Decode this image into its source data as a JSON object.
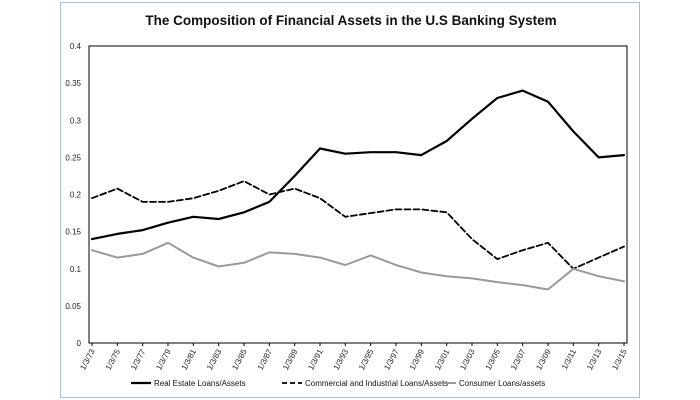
{
  "chart_data": {
    "type": "line",
    "title": "The Composition of Financial Assets in the U.S Banking System",
    "xlabel": "",
    "ylabel": "",
    "ylim": [
      0,
      0.4
    ],
    "yticks": [
      "0",
      "0.05",
      "0.1",
      "0.15",
      "0.2",
      "0.25",
      "0.3",
      "0.35",
      "0.4"
    ],
    "x_tick_labels": [
      "1/3/73",
      "1/3/75",
      "1/3/77",
      "1/3/79",
      "1/3/81",
      "1/3/83",
      "1/3/85",
      "1/3/87",
      "1/3/89",
      "1/3/91",
      "1/3/93",
      "1/3/95",
      "1/3/97",
      "1/3/99",
      "1/3/01",
      "1/3/03",
      "1/3/05",
      "1/3/07",
      "1/3/09",
      "1/3/11",
      "1/3/13",
      "1/3/15"
    ],
    "x": [
      "1/3/73",
      "1/3/75",
      "1/3/77",
      "1/3/79",
      "1/3/81",
      "1/3/83",
      "1/3/85",
      "1/3/87",
      "1/3/89",
      "1/3/91",
      "1/3/93",
      "1/3/95",
      "1/3/97",
      "1/3/99",
      "1/3/01",
      "1/3/03",
      "1/3/05",
      "1/3/07",
      "1/3/09",
      "1/3/11",
      "1/3/13",
      "1/3/15"
    ],
    "grid": false,
    "legend": "bottom",
    "series": [
      {
        "name": "Real Estate Loans/Assets",
        "color": "#000000",
        "dash": "solid",
        "width": 2.2,
        "values": [
          0.14,
          0.147,
          0.152,
          0.162,
          0.17,
          0.167,
          0.176,
          0.19,
          0.225,
          0.262,
          0.255,
          0.257,
          0.257,
          0.253,
          0.272,
          0.302,
          0.33,
          0.34,
          0.325,
          0.285,
          0.25,
          0.253
        ]
      },
      {
        "name": "Commercial and Industrial Loans/Assets",
        "color": "#000000",
        "dash": "dashed",
        "width": 1.8,
        "values": [
          0.195,
          0.208,
          0.19,
          0.19,
          0.195,
          0.205,
          0.218,
          0.2,
          0.208,
          0.195,
          0.17,
          0.175,
          0.18,
          0.18,
          0.176,
          0.14,
          0.113,
          0.125,
          0.135,
          0.1,
          0.115,
          0.13
        ]
      },
      {
        "name": "Consumer Loans/assets",
        "color": "#9a9a9a",
        "dash": "solid",
        "width": 2.0,
        "values": [
          0.125,
          0.115,
          0.12,
          0.135,
          0.115,
          0.103,
          0.108,
          0.122,
          0.12,
          0.115,
          0.105,
          0.118,
          0.105,
          0.095,
          0.09,
          0.087,
          0.082,
          0.078,
          0.072,
          0.1,
          0.09,
          0.083
        ]
      }
    ]
  }
}
